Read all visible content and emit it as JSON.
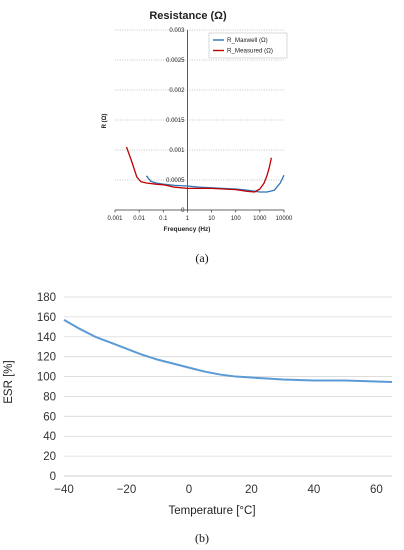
{
  "chart_data": [
    {
      "type": "line",
      "title": "Resistance (Ω)",
      "xlabel": "Frequency (Hz)",
      "ylabel": "R (Ω)",
      "x_scale": "log",
      "xlim": [
        0.001,
        10000
      ],
      "ylim": [
        0,
        0.003
      ],
      "x_ticks": [
        "0.001",
        "0.01",
        "0.1",
        "1",
        "10",
        "100",
        "1000",
        "10000"
      ],
      "y_ticks": [
        "0",
        "0.0005",
        "0.001",
        "0.0015",
        "0.002",
        "0.0025",
        "0.003"
      ],
      "grid": "horizontal dotted",
      "legend_position": "top-right",
      "series": [
        {
          "name": "R_Maxwell (Ω)",
          "color": "#2e75b6",
          "x": [
            0.02,
            0.03,
            0.05,
            0.1,
            0.3,
            1,
            3,
            10,
            30,
            100,
            300,
            1000,
            2000,
            4000,
            7000,
            10000
          ],
          "y": [
            0.00057,
            0.00048,
            0.00045,
            0.00043,
            0.00041,
            0.0004,
            0.00038,
            0.00037,
            0.00036,
            0.00035,
            0.00033,
            0.0003,
            0.0003,
            0.00033,
            0.00045,
            0.00058
          ]
        },
        {
          "name": "R_Measured (Ω)",
          "color": "#c00000",
          "x": [
            0.003,
            0.005,
            0.008,
            0.012,
            0.02,
            0.05,
            0.1,
            0.3,
            1,
            3,
            10,
            30,
            100,
            300,
            600,
            1000,
            1500,
            2000,
            2500,
            3000
          ],
          "y": [
            0.00105,
            0.0008,
            0.00055,
            0.00047,
            0.00045,
            0.00043,
            0.00042,
            0.00038,
            0.00036,
            0.00036,
            0.00036,
            0.00035,
            0.00034,
            0.00031,
            0.0003,
            0.00035,
            0.00045,
            0.00058,
            0.00072,
            0.00087
          ]
        }
      ]
    },
    {
      "type": "line",
      "xlabel": "Temperature [°C]",
      "ylabel": "ESR [%]",
      "xlim": [
        -40,
        65
      ],
      "ylim": [
        0,
        180
      ],
      "x_ticks": [
        "−40",
        "−20",
        "0",
        "20",
        "40",
        "60"
      ],
      "x_tick_values": [
        -40,
        -20,
        0,
        20,
        40,
        60
      ],
      "y_ticks": [
        "0",
        "20",
        "40",
        "60",
        "80",
        "100",
        "120",
        "140",
        "160",
        "180"
      ],
      "grid": "horizontal",
      "series": [
        {
          "color": "#5b9bd5",
          "x": [
            -40,
            -35,
            -30,
            -25,
            -20,
            -15,
            -10,
            -5,
            0,
            5,
            10,
            15,
            20,
            25,
            30,
            40,
            50,
            60,
            65
          ],
          "y": [
            157,
            148,
            140,
            134,
            128,
            122,
            117,
            113,
            109,
            105,
            102,
            100,
            99,
            98,
            97,
            96,
            96,
            95,
            94.5
          ]
        }
      ]
    }
  ],
  "captions": {
    "a": "(a)",
    "b": "(b)"
  }
}
